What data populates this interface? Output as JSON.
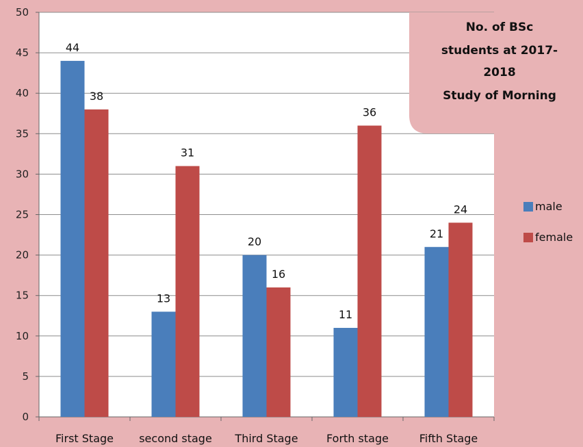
{
  "chart_data": {
    "type": "bar",
    "title_lines": [
      "No. of BSc",
      "students at 2017-",
      "2018",
      "Study of Morning"
    ],
    "categories": [
      "First Stage",
      "second stage",
      "Third Stage",
      "Forth stage",
      "Fifth Stage"
    ],
    "series": [
      {
        "name": "male",
        "values": [
          44,
          13,
          20,
          11,
          21
        ],
        "color": "#4a7ebb"
      },
      {
        "name": "female",
        "values": [
          38,
          31,
          16,
          36,
          24
        ],
        "color": "#be4b48"
      }
    ],
    "ylim": [
      0,
      50
    ],
    "yticks": [
      0,
      5,
      10,
      15,
      20,
      25,
      30,
      35,
      40,
      45,
      50
    ],
    "grid": true,
    "legend_position": "right",
    "data_labels": true
  },
  "colors": {
    "background": "#e8b3b5",
    "plot_area": "#ffffff",
    "gridline": "#8c8c8c",
    "title_box": "#e8b3b5"
  }
}
